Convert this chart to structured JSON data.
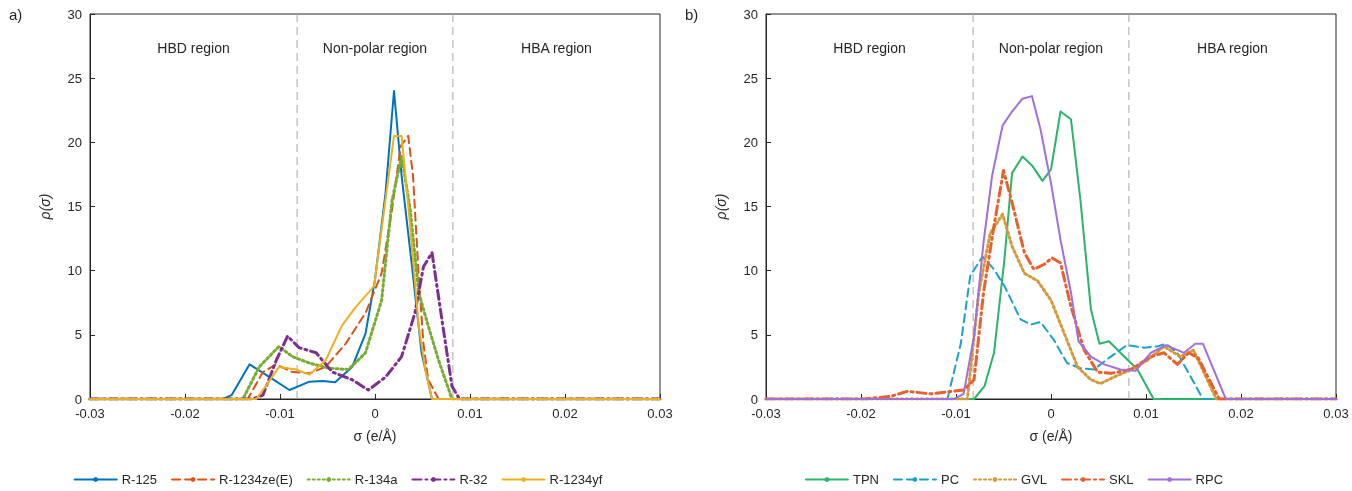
{
  "chart_data": [
    {
      "type": "line",
      "title": "a)",
      "xlabel": "σ (e/Å)",
      "ylabel": "ρ(σ)",
      "xlim": [
        -0.03,
        0.03
      ],
      "xticks": [
        -0.03,
        -0.02,
        -0.01,
        0,
        0.01,
        0.02,
        0.03
      ],
      "ylim": [
        0,
        30
      ],
      "yticks": [
        0,
        5,
        10,
        15,
        20,
        25,
        30
      ],
      "grid": false,
      "legend": "bottom",
      "marker": "none",
      "ref_lines": [
        {
          "axis": "x",
          "value": -0.0082,
          "color": "#a6a6a6",
          "line_style": "dashed"
        },
        {
          "axis": "x",
          "value": 0.0082,
          "color": "#a6a6a6",
          "line_style": "dashed"
        }
      ],
      "annotations": [
        "HBD region",
        "Non-polar region",
        "HBA region"
      ],
      "series": [
        {
          "name": "R-125",
          "color": "#0072bd",
          "line_style": "solid",
          "x": [
            -0.03,
            -0.016,
            -0.0151,
            -0.0132,
            -0.0111,
            -0.009,
            -0.0069,
            -0.0055,
            -0.0042,
            -0.0024,
            -0.001,
            0.0,
            0.0011,
            0.002,
            0.0028,
            0.0039,
            0.0049,
            0.006,
            0.03
          ],
          "values": [
            0,
            0,
            0.3,
            2.7,
            1.7,
            0.7,
            1.35,
            1.4,
            1.3,
            2.5,
            5.1,
            9.3,
            16,
            24,
            17.4,
            10.3,
            3.6,
            0,
            0
          ]
        },
        {
          "name": "R-1234ze(E)",
          "color": "#d95319",
          "line_style": "dashed",
          "x": [
            -0.03,
            -0.0134,
            -0.0118,
            -0.0104,
            -0.0087,
            -0.0069,
            -0.0052,
            -0.0031,
            -0.001,
            0.0007,
            0.0018,
            0.0027,
            0.0035,
            0.004,
            0.0046,
            0.0051,
            0.0056,
            0.0067,
            0.03
          ],
          "values": [
            0,
            0,
            2.1,
            2.7,
            2.1,
            2.0,
            2.5,
            4.3,
            6.7,
            9.8,
            14.8,
            19.7,
            20.5,
            17.4,
            9.6,
            4.3,
            1.5,
            0,
            0
          ]
        },
        {
          "name": "R-134a",
          "color": "#77ac30",
          "line_style": "dotted",
          "x": [
            -0.03,
            -0.0139,
            -0.0122,
            -0.0101,
            -0.0087,
            -0.0069,
            -0.0049,
            -0.0028,
            -0.001,
            0.0007,
            0.0018,
            0.0028,
            0.0037,
            0.0046,
            0.0056,
            0.0067,
            0.0081,
            0.03
          ],
          "values": [
            0,
            0,
            2.5,
            4.1,
            3.3,
            2.8,
            2.4,
            2.3,
            3.6,
            7.7,
            15.5,
            18.9,
            14.8,
            8.3,
            5.7,
            3.0,
            0,
            0
          ]
        },
        {
          "name": "R-32",
          "color": "#7e2f8e",
          "line_style": "dashdot",
          "x": [
            -0.03,
            -0.0129,
            -0.0118,
            -0.0104,
            -0.0092,
            -0.008,
            -0.0062,
            -0.0045,
            -0.0024,
            -0.0007,
            0.0011,
            0.0028,
            0.0042,
            0.0051,
            0.006,
            0.007,
            0.0081,
            0.0089,
            0.03
          ],
          "values": [
            0,
            0,
            0.3,
            3.0,
            4.9,
            4.0,
            3.6,
            2.1,
            1.5,
            0.7,
            1.7,
            3.3,
            6.7,
            10.3,
            11.4,
            6.4,
            1.0,
            0,
            0
          ]
        },
        {
          "name": "R-1234yf",
          "color": "#edb120",
          "line_style": "solid",
          "x": [
            -0.03,
            -0.0125,
            -0.0115,
            -0.0101,
            -0.0083,
            -0.0069,
            -0.0052,
            -0.0035,
            -0.0021,
            -0.0001,
            0.0011,
            0.002,
            0.0028,
            0.0037,
            0.0046,
            0.0053,
            0.006,
            0.03
          ],
          "values": [
            0,
            0,
            1.0,
            2.5,
            2.3,
            1.9,
            3.0,
            5.7,
            7.1,
            8.8,
            15.5,
            20.5,
            20.5,
            13.5,
            5.7,
            2.3,
            0,
            0
          ]
        }
      ]
    },
    {
      "type": "line",
      "title": "b)",
      "xlabel": "σ (e/Å)",
      "ylabel": "ρ(σ)",
      "xlim": [
        -0.03,
        0.03
      ],
      "xticks": [
        -0.03,
        -0.02,
        -0.01,
        0,
        0.01,
        0.02,
        0.03
      ],
      "ylim": [
        0,
        30
      ],
      "yticks": [
        0,
        5,
        10,
        15,
        20,
        25,
        30
      ],
      "grid": false,
      "legend": "bottom",
      "marker": "none",
      "ref_lines": [
        {
          "axis": "x",
          "value": -0.0082,
          "color": "#a6a6a6",
          "line_style": "dashed"
        },
        {
          "axis": "x",
          "value": 0.0082,
          "color": "#a6a6a6",
          "line_style": "dashed"
        }
      ],
      "annotations": [
        "HBD region",
        "Non-polar region",
        "HBA region"
      ],
      "series": [
        {
          "name": "TPN",
          "color": "#2ab56a",
          "line_style": "solid",
          "x": [
            -0.03,
            -0.0081,
            -0.007,
            -0.006,
            -0.0049,
            -0.0041,
            -0.003,
            -0.002,
            -0.0009,
            0.0,
            0.001,
            0.0021,
            0.0031,
            0.0042,
            0.0051,
            0.0061,
            0.0073,
            0.0091,
            0.0108,
            0.03
          ],
          "values": [
            0,
            0,
            1.0,
            3.6,
            10.9,
            17.6,
            18.9,
            18.2,
            17.0,
            17.9,
            22.4,
            21.8,
            15.5,
            7.0,
            4.3,
            4.5,
            3.6,
            2.3,
            0,
            0
          ]
        },
        {
          "name": "PC",
          "color": "#1ba1c7",
          "line_style": "dashed",
          "x": [
            -0.03,
            -0.0109,
            -0.0095,
            -0.0085,
            -0.0072,
            -0.006,
            -0.0049,
            -0.0032,
            -0.0021,
            -0.0011,
            0.0003,
            0.0017,
            0.0031,
            0.0045,
            0.0063,
            0.008,
            0.0098,
            0.0112,
            0.0121,
            0.0133,
            0.0145,
            0.016,
            0.03
          ],
          "values": [
            0,
            0,
            4.3,
            9.6,
            11.1,
            10.1,
            8.8,
            6.2,
            5.8,
            6.0,
            4.6,
            2.8,
            2.4,
            2.3,
            3.3,
            4.2,
            4.0,
            4.1,
            4.3,
            3.6,
            2.0,
            0,
            0
          ]
        },
        {
          "name": "GVL",
          "color": "#d4993a",
          "line_style": "dotted",
          "x": [
            -0.03,
            -0.0088,
            -0.0076,
            -0.0064,
            -0.0051,
            -0.0041,
            -0.0028,
            -0.0014,
            0.0,
            0.0014,
            0.0028,
            0.0042,
            0.0052,
            0.0066,
            0.0084,
            0.0101,
            0.0119,
            0.0136,
            0.015,
            0.0174,
            0.03
          ],
          "values": [
            0,
            0,
            8.3,
            12.9,
            14.4,
            11.9,
            9.8,
            9.2,
            7.7,
            5.1,
            2.5,
            1.5,
            1.2,
            1.7,
            2.3,
            3.0,
            4.1,
            3.3,
            3.8,
            0,
            0
          ]
        },
        {
          "name": "SKL",
          "color": "#e8612c",
          "line_style": "dashdot",
          "x": [
            -0.03,
            -0.0197,
            -0.0169,
            -0.0151,
            -0.0127,
            -0.0092,
            -0.0081,
            -0.0071,
            -0.006,
            -0.005,
            -0.0041,
            -0.0028,
            -0.0018,
            -0.0007,
            0.0001,
            0.001,
            0.0021,
            0.0035,
            0.0049,
            0.0063,
            0.0084,
            0.0105,
            0.0119,
            0.0133,
            0.0145,
            0.0155,
            0.0177,
            0.03
          ],
          "values": [
            0,
            0,
            0.2,
            0.6,
            0.4,
            0.7,
            1.5,
            8.3,
            13.5,
            17.8,
            15.3,
            11.4,
            10.1,
            10.5,
            11.0,
            10.6,
            7.2,
            3.8,
            2.1,
            2.0,
            2.3,
            3.3,
            3.6,
            2.7,
            3.6,
            3.2,
            0,
            0
          ]
        },
        {
          "name": "RPC",
          "color": "#a070d8",
          "line_style": "solid",
          "x": [
            -0.03,
            -0.0102,
            -0.0092,
            -0.0081,
            -0.0071,
            -0.0062,
            -0.0051,
            -0.0041,
            -0.003,
            -0.002,
            -0.0011,
            0.0,
            0.001,
            0.0021,
            0.0029,
            0.0042,
            0.0056,
            0.0073,
            0.0089,
            0.0105,
            0.0121,
            0.014,
            0.0152,
            0.016,
            0.0184,
            0.03
          ],
          "values": [
            0,
            0,
            0.4,
            4.9,
            12.2,
            17.4,
            21.3,
            22.4,
            23.4,
            23.6,
            21.0,
            16.8,
            12.4,
            8.3,
            4.5,
            3.3,
            2.7,
            2.3,
            2.2,
            3.6,
            4.2,
            3.6,
            4.3,
            4.3,
            0,
            0
          ]
        }
      ]
    }
  ]
}
